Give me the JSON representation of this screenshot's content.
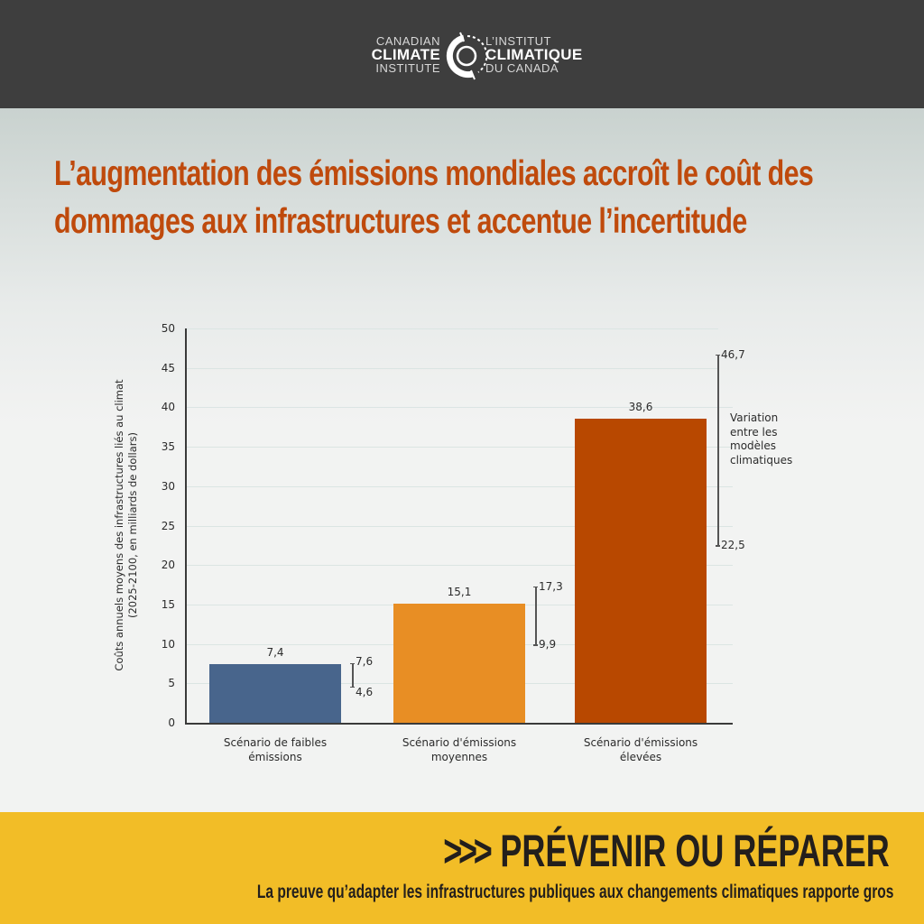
{
  "header": {
    "logo_left": {
      "line1": "CANADIAN",
      "line2": "CLIMATE",
      "line3": "INSTITUTE"
    },
    "logo_right": {
      "line1": "L’INSTITUT",
      "line2": "CLIMATIQUE",
      "line3": "DU CANADA"
    },
    "logo_icon": "institute-ring-icon",
    "background_color": "#3e3e3e"
  },
  "headline": {
    "text": "L’augmentation des émissions mondiales accroît le coût des dommages aux infrastructures et accentue l’incertitude",
    "color": "#bf4a0c"
  },
  "chart_data": {
    "type": "bar",
    "title": "L’augmentation des émissions mondiales accroît le coût des dommages aux infrastructures et accentue l’incertitude",
    "xlabel": "",
    "ylabel": "Coûts annuels moyens des infrastructures liés au climat (2025-2100, en milliards de dollars)",
    "ylabel_line1": "Coûts annuels moyens des infrastructures liés au climat",
    "ylabel_line2": "(2025-2100, en milliards de dollars)",
    "ylim": [
      0,
      50
    ],
    "yticks": [
      "0",
      "5",
      "10",
      "15",
      "20",
      "25",
      "30",
      "35",
      "40",
      "45",
      "50"
    ],
    "grid": true,
    "categories": [
      "Scénario de faibles émissions",
      "Scénario d’émissions moyennes",
      "Scénario d’émissions élevées"
    ],
    "category_lines": [
      [
        "Scénario de faibles",
        "émissions"
      ],
      [
        "Scénario d'émissions",
        "moyennes"
      ],
      [
        "Scénario d'émissions",
        "élevées"
      ]
    ],
    "values": [
      7.4,
      15.1,
      38.6
    ],
    "value_labels": [
      "7,4",
      "15,1",
      "38,6"
    ],
    "colors": [
      "#48658c",
      "#e88e24",
      "#b84800"
    ],
    "ranges": [
      {
        "low": 4.6,
        "high": 7.6,
        "low_label": "4,6",
        "high_label": "7,6"
      },
      {
        "low": 9.9,
        "high": 17.3,
        "low_label": "9,9",
        "high_label": "17,3"
      },
      {
        "low": 22.5,
        "high": 46.7,
        "low_label": "22,5",
        "high_label": "46,7"
      }
    ],
    "annotation": {
      "lines": [
        "Variation",
        "entre les",
        "modèles",
        "climatiques"
      ],
      "text": "Variation entre les modèles climatiques"
    },
    "legend": null
  },
  "banner": {
    "arrows": ">>>",
    "title": "PRÉVENIR OU RÉPARER",
    "subtitle": "La preuve qu’adapter les infrastructures publiques aux changements climatiques rapporte gros",
    "background_color": "#f2bd27"
  }
}
